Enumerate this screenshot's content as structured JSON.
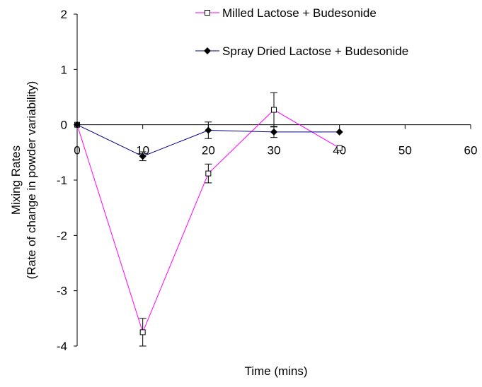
{
  "chart_data": {
    "type": "line",
    "title": "",
    "xlabel": "Time (mins)",
    "ylabel_lines": [
      "Mixing Rates",
      "(Rate of change in powder variability)"
    ],
    "xlim": [
      0,
      60
    ],
    "ylim": [
      -4,
      2
    ],
    "x_ticks": [
      0,
      10,
      20,
      30,
      40,
      50,
      60
    ],
    "y_ticks": [
      2,
      1,
      0,
      -1,
      -2,
      -3,
      -4
    ],
    "grid": false,
    "legend_position": "top-right",
    "series": [
      {
        "name": "Milled Lactose + Budesonide",
        "color": "#ff00ff",
        "marker": "open-square",
        "x": [
          0,
          10,
          20,
          30,
          40
        ],
        "y": [
          0.0,
          -3.75,
          -0.88,
          0.27,
          -0.42
        ],
        "err": [
          0.0,
          0.25,
          0.17,
          0.31,
          0.0
        ]
      },
      {
        "name": "Spray Dried Lactose + Budesonide",
        "color": "#000080",
        "marker": "filled-diamond",
        "x": [
          0,
          10,
          20,
          30,
          40
        ],
        "y": [
          0.0,
          -0.57,
          -0.1,
          -0.13,
          -0.13
        ],
        "err": [
          0.0,
          0.08,
          0.15,
          0.1,
          0.0
        ]
      }
    ]
  }
}
